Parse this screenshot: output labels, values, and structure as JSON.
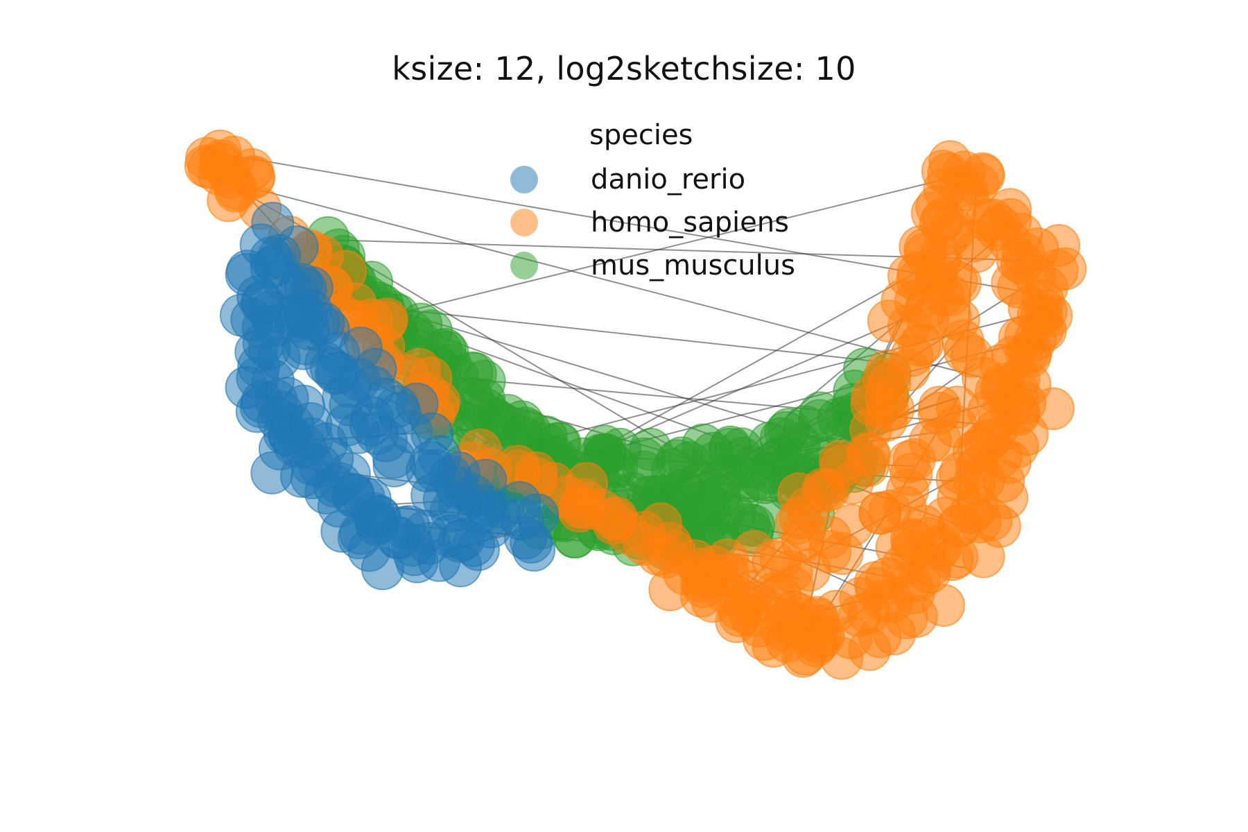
{
  "chart_data": {
    "type": "scatter",
    "title": "ksize: 12, log2sketchsize: 10",
    "legend": {
      "title": "species",
      "placement": "top-center",
      "entries": [
        "danio_rerio",
        "homo_sapiens",
        "mus_musculus"
      ]
    },
    "axes_visible": false,
    "grid": false,
    "xlim": [
      0,
      1
    ],
    "ylim": [
      0,
      1
    ],
    "series": [
      {
        "name": "danio_rerio",
        "color": "#1f77b4",
        "point_count": 150,
        "points": [
          [
            0.08,
            0.78
          ],
          [
            0.09,
            0.8
          ],
          [
            0.07,
            0.74
          ],
          [
            0.08,
            0.7
          ],
          [
            0.06,
            0.67
          ],
          [
            0.07,
            0.63
          ],
          [
            0.08,
            0.6
          ],
          [
            0.06,
            0.56
          ],
          [
            0.07,
            0.53
          ],
          [
            0.09,
            0.51
          ],
          [
            0.1,
            0.48
          ],
          [
            0.11,
            0.45
          ],
          [
            0.12,
            0.42
          ],
          [
            0.14,
            0.4
          ],
          [
            0.15,
            0.37
          ],
          [
            0.17,
            0.35
          ],
          [
            0.19,
            0.33
          ],
          [
            0.2,
            0.3
          ],
          [
            0.22,
            0.28
          ],
          [
            0.24,
            0.27
          ],
          [
            0.26,
            0.26
          ],
          [
            0.28,
            0.25
          ],
          [
            0.3,
            0.27
          ],
          [
            0.32,
            0.3
          ],
          [
            0.33,
            0.33
          ],
          [
            0.3,
            0.35
          ],
          [
            0.27,
            0.37
          ],
          [
            0.25,
            0.4
          ],
          [
            0.22,
            0.43
          ],
          [
            0.2,
            0.46
          ],
          [
            0.18,
            0.5
          ],
          [
            0.16,
            0.53
          ],
          [
            0.14,
            0.57
          ],
          [
            0.12,
            0.61
          ],
          [
            0.11,
            0.65
          ],
          [
            0.1,
            0.69
          ],
          [
            0.12,
            0.72
          ],
          [
            0.13,
            0.68
          ],
          [
            0.15,
            0.64
          ],
          [
            0.17,
            0.6
          ],
          [
            0.19,
            0.56
          ],
          [
            0.21,
            0.52
          ],
          [
            0.23,
            0.48
          ],
          [
            0.25,
            0.44
          ],
          [
            0.28,
            0.4
          ],
          [
            0.31,
            0.36
          ],
          [
            0.35,
            0.31
          ],
          [
            0.38,
            0.29
          ],
          [
            0.36,
            0.27
          ],
          [
            0.22,
            0.24
          ],
          [
            0.18,
            0.28
          ],
          [
            0.15,
            0.31
          ],
          [
            0.12,
            0.36
          ],
          [
            0.1,
            0.4
          ],
          [
            0.08,
            0.44
          ],
          [
            0.07,
            0.48
          ]
        ]
      },
      {
        "name": "homo_sapiens",
        "color": "#ff7f0e",
        "point_count": 320,
        "points": [
          [
            0.02,
            0.95
          ],
          [
            0.04,
            0.93
          ],
          [
            0.03,
            0.9
          ],
          [
            0.05,
            0.88
          ],
          [
            0.12,
            0.78
          ],
          [
            0.15,
            0.72
          ],
          [
            0.17,
            0.68
          ],
          [
            0.19,
            0.64
          ],
          [
            0.21,
            0.6
          ],
          [
            0.24,
            0.55
          ],
          [
            0.27,
            0.5
          ],
          [
            0.33,
            0.4
          ],
          [
            0.36,
            0.37
          ],
          [
            0.42,
            0.35
          ],
          [
            0.45,
            0.33
          ],
          [
            0.47,
            0.3
          ],
          [
            0.5,
            0.27
          ],
          [
            0.53,
            0.24
          ],
          [
            0.55,
            0.21
          ],
          [
            0.58,
            0.19
          ],
          [
            0.61,
            0.17
          ],
          [
            0.63,
            0.15
          ],
          [
            0.66,
            0.13
          ],
          [
            0.69,
            0.12
          ],
          [
            0.72,
            0.11
          ],
          [
            0.74,
            0.14
          ],
          [
            0.77,
            0.17
          ],
          [
            0.8,
            0.2
          ],
          [
            0.82,
            0.24
          ],
          [
            0.84,
            0.28
          ],
          [
            0.86,
            0.32
          ],
          [
            0.88,
            0.37
          ],
          [
            0.9,
            0.42
          ],
          [
            0.91,
            0.47
          ],
          [
            0.92,
            0.52
          ],
          [
            0.93,
            0.57
          ],
          [
            0.94,
            0.62
          ],
          [
            0.95,
            0.67
          ],
          [
            0.94,
            0.72
          ],
          [
            0.93,
            0.77
          ],
          [
            0.92,
            0.82
          ],
          [
            0.9,
            0.86
          ],
          [
            0.88,
            0.89
          ],
          [
            0.86,
            0.91
          ],
          [
            0.85,
            0.87
          ],
          [
            0.84,
            0.83
          ],
          [
            0.83,
            0.78
          ],
          [
            0.82,
            0.73
          ],
          [
            0.81,
            0.68
          ],
          [
            0.8,
            0.63
          ],
          [
            0.79,
            0.58
          ],
          [
            0.78,
            0.53
          ],
          [
            0.76,
            0.48
          ],
          [
            0.74,
            0.43
          ],
          [
            0.72,
            0.38
          ],
          [
            0.7,
            0.33
          ],
          [
            0.67,
            0.28
          ],
          [
            0.64,
            0.24
          ],
          [
            0.6,
            0.22
          ],
          [
            0.56,
            0.2
          ],
          [
            0.63,
            0.1
          ],
          [
            0.68,
            0.07
          ],
          [
            0.74,
            0.09
          ],
          [
            0.78,
            0.12
          ],
          [
            0.83,
            0.16
          ],
          [
            0.87,
            0.22
          ],
          [
            0.89,
            0.28
          ],
          [
            0.91,
            0.35
          ],
          [
            0.93,
            0.44
          ],
          [
            0.95,
            0.53
          ],
          [
            0.96,
            0.6
          ],
          [
            0.96,
            0.7
          ],
          [
            0.97,
            0.76
          ],
          [
            0.87,
            0.79
          ],
          [
            0.85,
            0.75
          ],
          [
            0.86,
            0.7
          ],
          [
            0.87,
            0.64
          ],
          [
            0.88,
            0.58
          ],
          [
            0.86,
            0.52
          ],
          [
            0.84,
            0.46
          ],
          [
            0.81,
            0.4
          ],
          [
            0.78,
            0.34
          ],
          [
            0.75,
            0.29
          ],
          [
            0.71,
            0.25
          ],
          [
            0.68,
            0.2
          ],
          [
            0.66,
            0.17
          ],
          [
            0.79,
            0.27
          ],
          [
            0.89,
            0.47
          ]
        ]
      },
      {
        "name": "mus_musculus",
        "color": "#2ca02c",
        "point_count": 220,
        "points": [
          [
            0.14,
            0.78
          ],
          [
            0.17,
            0.74
          ],
          [
            0.19,
            0.7
          ],
          [
            0.21,
            0.66
          ],
          [
            0.24,
            0.62
          ],
          [
            0.27,
            0.58
          ],
          [
            0.3,
            0.54
          ],
          [
            0.33,
            0.5
          ],
          [
            0.36,
            0.47
          ],
          [
            0.4,
            0.44
          ],
          [
            0.44,
            0.42
          ],
          [
            0.48,
            0.41
          ],
          [
            0.52,
            0.41
          ],
          [
            0.56,
            0.41
          ],
          [
            0.6,
            0.41
          ],
          [
            0.64,
            0.42
          ],
          [
            0.68,
            0.44
          ],
          [
            0.72,
            0.47
          ],
          [
            0.75,
            0.51
          ],
          [
            0.77,
            0.55
          ],
          [
            0.32,
            0.38
          ],
          [
            0.36,
            0.35
          ],
          [
            0.4,
            0.32
          ],
          [
            0.44,
            0.3
          ],
          [
            0.48,
            0.29
          ],
          [
            0.52,
            0.28
          ],
          [
            0.56,
            0.28
          ],
          [
            0.6,
            0.29
          ],
          [
            0.64,
            0.31
          ],
          [
            0.68,
            0.34
          ],
          [
            0.72,
            0.37
          ],
          [
            0.46,
            0.36
          ],
          [
            0.5,
            0.35
          ],
          [
            0.54,
            0.35
          ],
          [
            0.58,
            0.36
          ],
          [
            0.62,
            0.37
          ],
          [
            0.66,
            0.39
          ],
          [
            0.42,
            0.38
          ],
          [
            0.38,
            0.4
          ],
          [
            0.35,
            0.43
          ],
          [
            0.31,
            0.47
          ],
          [
            0.28,
            0.51
          ],
          [
            0.25,
            0.56
          ],
          [
            0.22,
            0.61
          ],
          [
            0.74,
            0.42
          ],
          [
            0.7,
            0.4
          ],
          [
            0.57,
            0.33
          ],
          [
            0.53,
            0.32
          ]
        ]
      }
    ]
  }
}
